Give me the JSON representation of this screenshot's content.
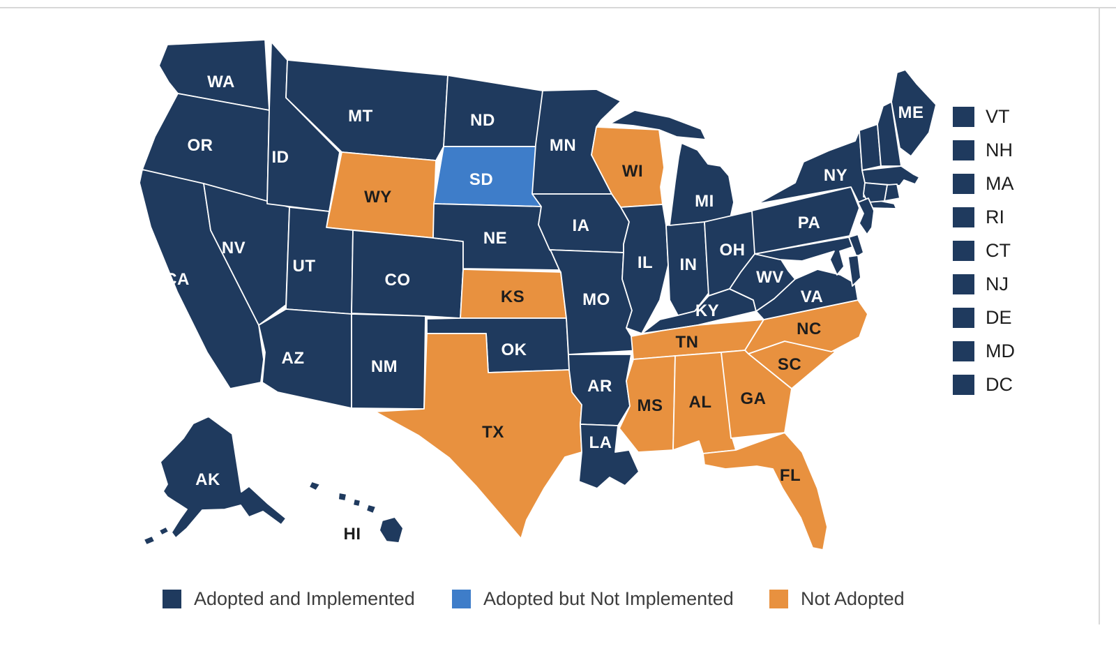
{
  "colors": {
    "adopted_implemented": "#1f3a5e",
    "adopted_not_implemented": "#3e7dc9",
    "not_adopted": "#e8913f",
    "state_border": "#ffffff",
    "label_on_dark": "#ffffff",
    "label_on_light": "#1d1d1d",
    "legend_text": "#3c3c3c",
    "frame_border": "#d8d8d8",
    "background": "#ffffff"
  },
  "map": {
    "states": [
      {
        "abbr": "WA",
        "status": "adopted_implemented",
        "show_label": true
      },
      {
        "abbr": "OR",
        "status": "adopted_implemented",
        "show_label": true
      },
      {
        "abbr": "CA",
        "status": "adopted_implemented",
        "show_label": true
      },
      {
        "abbr": "NV",
        "status": "adopted_implemented",
        "show_label": true
      },
      {
        "abbr": "ID",
        "status": "adopted_implemented",
        "show_label": true
      },
      {
        "abbr": "MT",
        "status": "adopted_implemented",
        "show_label": true
      },
      {
        "abbr": "WY",
        "status": "not_adopted",
        "show_label": true
      },
      {
        "abbr": "UT",
        "status": "adopted_implemented",
        "show_label": true
      },
      {
        "abbr": "CO",
        "status": "adopted_implemented",
        "show_label": true
      },
      {
        "abbr": "AZ",
        "status": "adopted_implemented",
        "show_label": true
      },
      {
        "abbr": "NM",
        "status": "adopted_implemented",
        "show_label": true
      },
      {
        "abbr": "ND",
        "status": "adopted_implemented",
        "show_label": true
      },
      {
        "abbr": "SD",
        "status": "adopted_not_implemented",
        "show_label": true
      },
      {
        "abbr": "NE",
        "status": "adopted_implemented",
        "show_label": true
      },
      {
        "abbr": "KS",
        "status": "not_adopted",
        "show_label": true
      },
      {
        "abbr": "OK",
        "status": "adopted_implemented",
        "show_label": true
      },
      {
        "abbr": "TX",
        "status": "not_adopted",
        "show_label": true
      },
      {
        "abbr": "MN",
        "status": "adopted_implemented",
        "show_label": true
      },
      {
        "abbr": "IA",
        "status": "adopted_implemented",
        "show_label": true
      },
      {
        "abbr": "MO",
        "status": "adopted_implemented",
        "show_label": true
      },
      {
        "abbr": "AR",
        "status": "adopted_implemented",
        "show_label": true
      },
      {
        "abbr": "LA",
        "status": "adopted_implemented",
        "show_label": true
      },
      {
        "abbr": "WI",
        "status": "not_adopted",
        "show_label": true
      },
      {
        "abbr": "IL",
        "status": "adopted_implemented",
        "show_label": true
      },
      {
        "abbr": "IN",
        "status": "adopted_implemented",
        "show_label": true
      },
      {
        "abbr": "MI",
        "status": "adopted_implemented",
        "show_label": true
      },
      {
        "abbr": "OH",
        "status": "adopted_implemented",
        "show_label": true
      },
      {
        "abbr": "KY",
        "status": "adopted_implemented",
        "show_label": true
      },
      {
        "abbr": "TN",
        "status": "not_adopted",
        "show_label": true
      },
      {
        "abbr": "MS",
        "status": "not_adopted",
        "show_label": true
      },
      {
        "abbr": "AL",
        "status": "not_adopted",
        "show_label": true
      },
      {
        "abbr": "GA",
        "status": "not_adopted",
        "show_label": true
      },
      {
        "abbr": "SC",
        "status": "not_adopted",
        "show_label": true
      },
      {
        "abbr": "NC",
        "status": "not_adopted",
        "show_label": true
      },
      {
        "abbr": "FL",
        "status": "not_adopted",
        "show_label": true
      },
      {
        "abbr": "VA",
        "status": "adopted_implemented",
        "show_label": true
      },
      {
        "abbr": "WV",
        "status": "adopted_implemented",
        "show_label": true
      },
      {
        "abbr": "PA",
        "status": "adopted_implemented",
        "show_label": true
      },
      {
        "abbr": "NY",
        "status": "adopted_implemented",
        "show_label": true
      },
      {
        "abbr": "ME",
        "status": "adopted_implemented",
        "show_label": true
      },
      {
        "abbr": "VT",
        "status": "adopted_implemented",
        "show_label": false
      },
      {
        "abbr": "NH",
        "status": "adopted_implemented",
        "show_label": false
      },
      {
        "abbr": "MA",
        "status": "adopted_implemented",
        "show_label": false
      },
      {
        "abbr": "RI",
        "status": "adopted_implemented",
        "show_label": false
      },
      {
        "abbr": "CT",
        "status": "adopted_implemented",
        "show_label": false
      },
      {
        "abbr": "NJ",
        "status": "adopted_implemented",
        "show_label": false
      },
      {
        "abbr": "DE",
        "status": "adopted_implemented",
        "show_label": false
      },
      {
        "abbr": "MD",
        "status": "adopted_implemented",
        "show_label": false
      },
      {
        "abbr": "AK",
        "status": "adopted_implemented",
        "show_label": true
      },
      {
        "abbr": "HI",
        "status": "adopted_implemented",
        "show_label": true,
        "dark_label": true
      }
    ]
  },
  "side_list": {
    "status": "adopted_implemented",
    "items": [
      "VT",
      "NH",
      "MA",
      "RI",
      "CT",
      "NJ",
      "DE",
      "MD",
      "DC"
    ]
  },
  "legend": {
    "items": [
      {
        "label": "Adopted and Implemented",
        "status": "adopted_implemented"
      },
      {
        "label": "Adopted but Not Implemented",
        "status": "adopted_not_implemented"
      },
      {
        "label": "Not Adopted",
        "status": "not_adopted"
      }
    ]
  }
}
